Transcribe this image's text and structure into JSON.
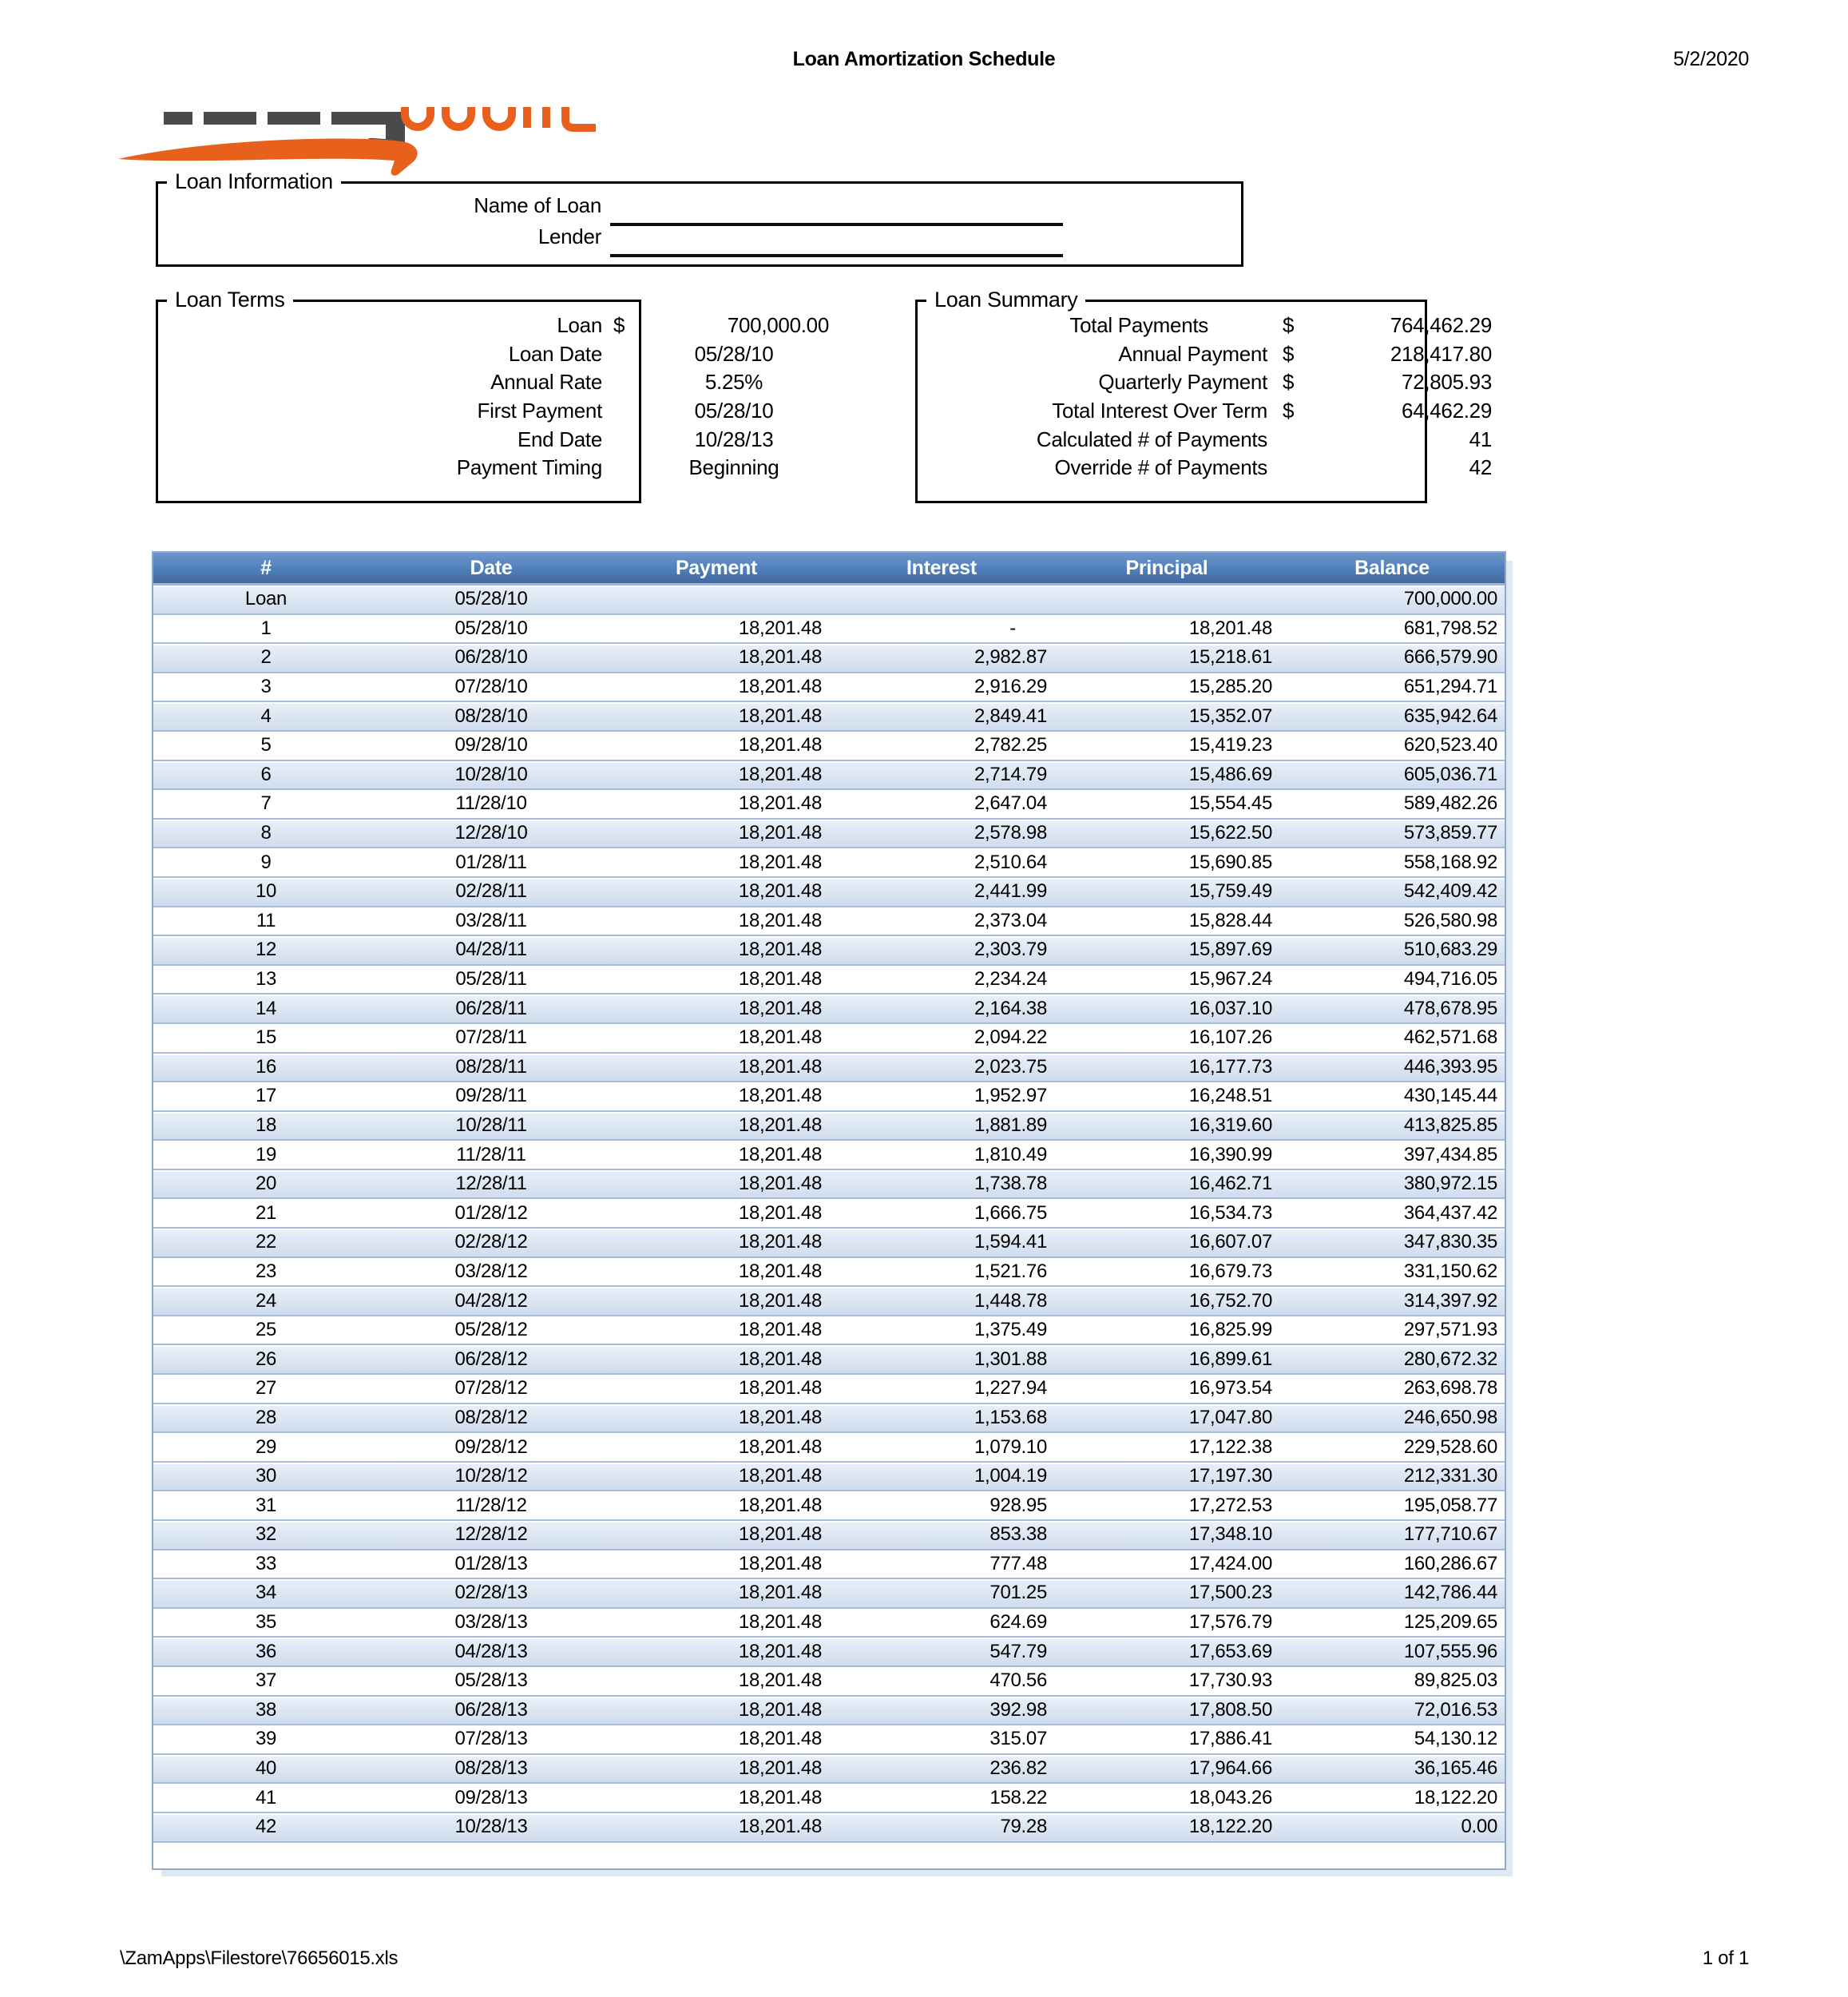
{
  "page": {
    "header_title": "Loan Amortization Schedule",
    "header_date": "5/2/2020",
    "footer_path": "\\ZamApps\\Filestore\\76656015.xls",
    "footer_page": "1 of 1"
  },
  "colors": {
    "table_header_blue": "#4F81BD",
    "table_band_blue": "#DCE6F1",
    "table_border_blue": "#95B3D7",
    "logo_orange": "#E8611C",
    "logo_gray": "#4A4A4A"
  },
  "loan_information": {
    "legend": "Loan Information",
    "fields": [
      {
        "label": "Name of Loan",
        "value": ""
      },
      {
        "label": "Lender",
        "value": ""
      }
    ]
  },
  "loan_terms": {
    "legend": "Loan Terms",
    "rows": [
      {
        "label": "Loan",
        "currency": "$",
        "value": "700,000.00"
      },
      {
        "label": "Loan Date",
        "currency": "",
        "value": "05/28/10"
      },
      {
        "label": "Annual Rate",
        "currency": "",
        "value": "5.25%"
      },
      {
        "label": "First Payment",
        "currency": "",
        "value": "05/28/10"
      },
      {
        "label": "End Date",
        "currency": "",
        "value": "10/28/13"
      },
      {
        "label": "Payment Timing",
        "currency": "",
        "value": "Beginning"
      }
    ]
  },
  "loan_summary": {
    "legend": "Loan Summary",
    "rows": [
      {
        "label": "Total Payments",
        "currency": "$",
        "value": "764,462.29"
      },
      {
        "label": "Annual Payment",
        "currency": "$",
        "value": "218,417.80"
      },
      {
        "label": "Quarterly Payment",
        "currency": "$",
        "value": "72,805.93"
      },
      {
        "label": "Total Interest Over Term",
        "currency": "$",
        "value": "64,462.29"
      },
      {
        "label": "Calculated # of Payments",
        "currency": "",
        "value": "41"
      },
      {
        "label": "Override # of Payments",
        "currency": "",
        "value": "42"
      }
    ]
  },
  "schedule_table": {
    "columns": [
      "#",
      "Date",
      "Payment",
      "Interest",
      "Principal",
      "Balance"
    ],
    "rows": [
      [
        "Loan",
        "05/28/10",
        "",
        "",
        "",
        "700,000.00"
      ],
      [
        "1",
        "05/28/10",
        "18,201.48",
        "-",
        "18,201.48",
        "681,798.52"
      ],
      [
        "2",
        "06/28/10",
        "18,201.48",
        "2,982.87",
        "15,218.61",
        "666,579.90"
      ],
      [
        "3",
        "07/28/10",
        "18,201.48",
        "2,916.29",
        "15,285.20",
        "651,294.71"
      ],
      [
        "4",
        "08/28/10",
        "18,201.48",
        "2,849.41",
        "15,352.07",
        "635,942.64"
      ],
      [
        "5",
        "09/28/10",
        "18,201.48",
        "2,782.25",
        "15,419.23",
        "620,523.40"
      ],
      [
        "6",
        "10/28/10",
        "18,201.48",
        "2,714.79",
        "15,486.69",
        "605,036.71"
      ],
      [
        "7",
        "11/28/10",
        "18,201.48",
        "2,647.04",
        "15,554.45",
        "589,482.26"
      ],
      [
        "8",
        "12/28/10",
        "18,201.48",
        "2,578.98",
        "15,622.50",
        "573,859.77"
      ],
      [
        "9",
        "01/28/11",
        "18,201.48",
        "2,510.64",
        "15,690.85",
        "558,168.92"
      ],
      [
        "10",
        "02/28/11",
        "18,201.48",
        "2,441.99",
        "15,759.49",
        "542,409.42"
      ],
      [
        "11",
        "03/28/11",
        "18,201.48",
        "2,373.04",
        "15,828.44",
        "526,580.98"
      ],
      [
        "12",
        "04/28/11",
        "18,201.48",
        "2,303.79",
        "15,897.69",
        "510,683.29"
      ],
      [
        "13",
        "05/28/11",
        "18,201.48",
        "2,234.24",
        "15,967.24",
        "494,716.05"
      ],
      [
        "14",
        "06/28/11",
        "18,201.48",
        "2,164.38",
        "16,037.10",
        "478,678.95"
      ],
      [
        "15",
        "07/28/11",
        "18,201.48",
        "2,094.22",
        "16,107.26",
        "462,571.68"
      ],
      [
        "16",
        "08/28/11",
        "18,201.48",
        "2,023.75",
        "16,177.73",
        "446,393.95"
      ],
      [
        "17",
        "09/28/11",
        "18,201.48",
        "1,952.97",
        "16,248.51",
        "430,145.44"
      ],
      [
        "18",
        "10/28/11",
        "18,201.48",
        "1,881.89",
        "16,319.60",
        "413,825.85"
      ],
      [
        "19",
        "11/28/11",
        "18,201.48",
        "1,810.49",
        "16,390.99",
        "397,434.85"
      ],
      [
        "20",
        "12/28/11",
        "18,201.48",
        "1,738.78",
        "16,462.71",
        "380,972.15"
      ],
      [
        "21",
        "01/28/12",
        "18,201.48",
        "1,666.75",
        "16,534.73",
        "364,437.42"
      ],
      [
        "22",
        "02/28/12",
        "18,201.48",
        "1,594.41",
        "16,607.07",
        "347,830.35"
      ],
      [
        "23",
        "03/28/12",
        "18,201.48",
        "1,521.76",
        "16,679.73",
        "331,150.62"
      ],
      [
        "24",
        "04/28/12",
        "18,201.48",
        "1,448.78",
        "16,752.70",
        "314,397.92"
      ],
      [
        "25",
        "05/28/12",
        "18,201.48",
        "1,375.49",
        "16,825.99",
        "297,571.93"
      ],
      [
        "26",
        "06/28/12",
        "18,201.48",
        "1,301.88",
        "16,899.61",
        "280,672.32"
      ],
      [
        "27",
        "07/28/12",
        "18,201.48",
        "1,227.94",
        "16,973.54",
        "263,698.78"
      ],
      [
        "28",
        "08/28/12",
        "18,201.48",
        "1,153.68",
        "17,047.80",
        "246,650.98"
      ],
      [
        "29",
        "09/28/12",
        "18,201.48",
        "1,079.10",
        "17,122.38",
        "229,528.60"
      ],
      [
        "30",
        "10/28/12",
        "18,201.48",
        "1,004.19",
        "17,197.30",
        "212,331.30"
      ],
      [
        "31",
        "11/28/12",
        "18,201.48",
        "928.95",
        "17,272.53",
        "195,058.77"
      ],
      [
        "32",
        "12/28/12",
        "18,201.48",
        "853.38",
        "17,348.10",
        "177,710.67"
      ],
      [
        "33",
        "01/28/13",
        "18,201.48",
        "777.48",
        "17,424.00",
        "160,286.67"
      ],
      [
        "34",
        "02/28/13",
        "18,201.48",
        "701.25",
        "17,500.23",
        "142,786.44"
      ],
      [
        "35",
        "03/28/13",
        "18,201.48",
        "624.69",
        "17,576.79",
        "125,209.65"
      ],
      [
        "36",
        "04/28/13",
        "18,201.48",
        "547.79",
        "17,653.69",
        "107,555.96"
      ],
      [
        "37",
        "05/28/13",
        "18,201.48",
        "470.56",
        "17,730.93",
        "89,825.03"
      ],
      [
        "38",
        "06/28/13",
        "18,201.48",
        "392.98",
        "17,808.50",
        "72,016.53"
      ],
      [
        "39",
        "07/28/13",
        "18,201.48",
        "315.07",
        "17,886.41",
        "54,130.12"
      ],
      [
        "40",
        "08/28/13",
        "18,201.48",
        "236.82",
        "17,964.66",
        "36,165.46"
      ],
      [
        "41",
        "09/28/13",
        "18,201.48",
        "158.22",
        "18,043.26",
        "18,122.20"
      ],
      [
        "42",
        "10/28/13",
        "18,201.48",
        "79.28",
        "18,122.20",
        "0.00"
      ]
    ]
  }
}
